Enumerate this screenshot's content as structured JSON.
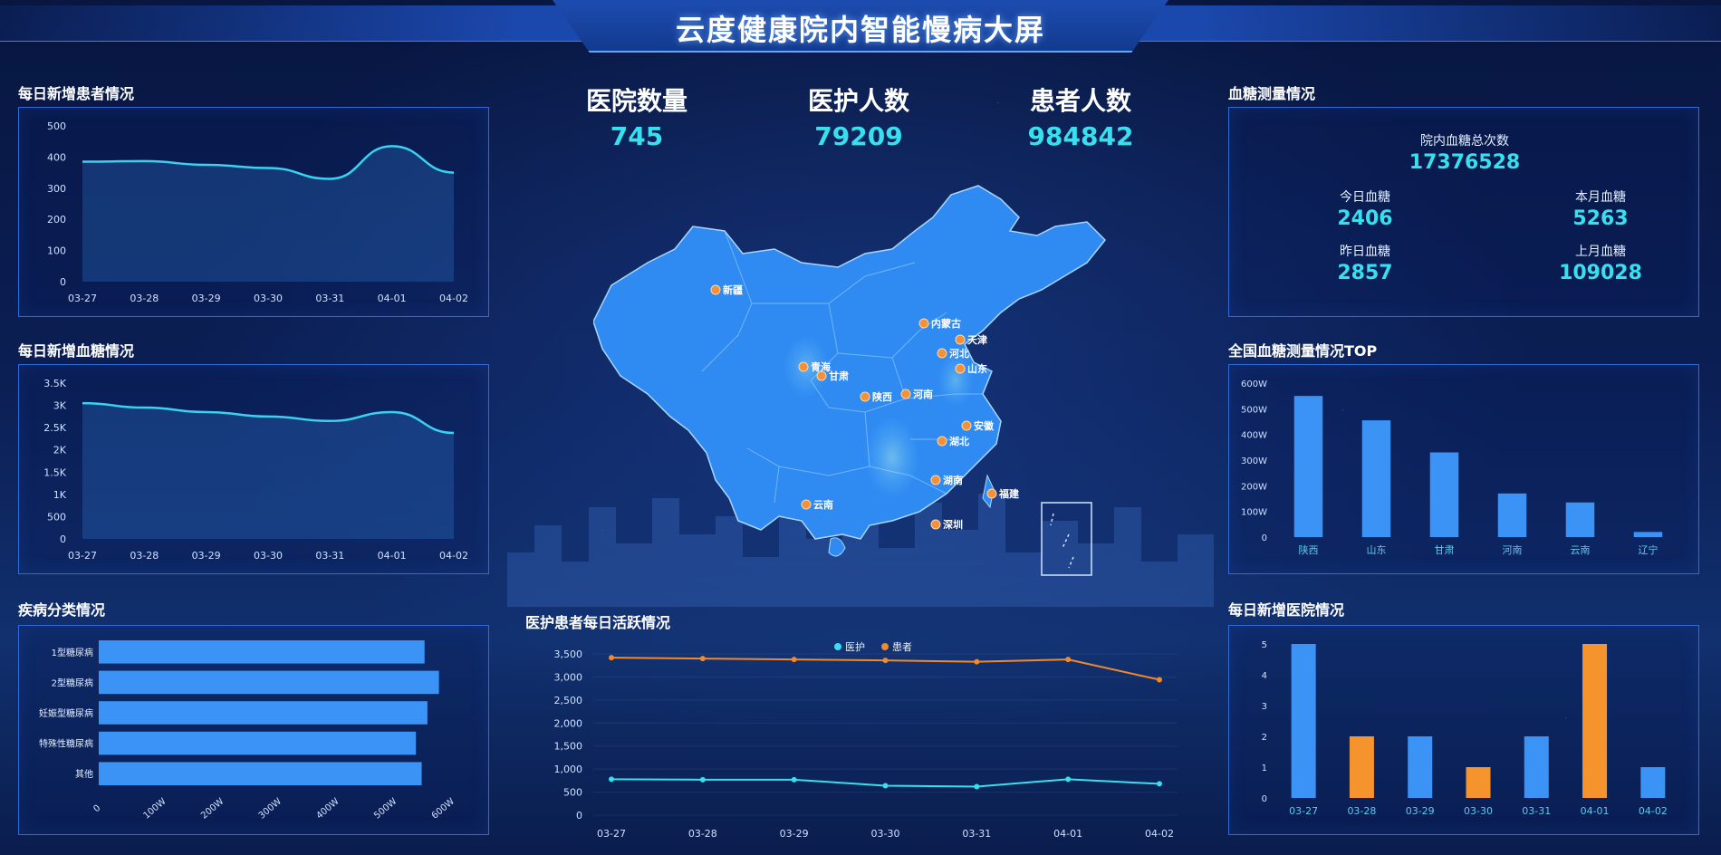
{
  "header": {
    "title": "云度健康院内智能慢病大屏"
  },
  "kpis": [
    {
      "label": "医院数量",
      "value": "745"
    },
    {
      "label": "医护人数",
      "value": "79209"
    },
    {
      "label": "患者人数",
      "value": "984842"
    }
  ],
  "panels": {
    "daily_new_patients": {
      "title": "每日新增患者情况",
      "chart_data": {
        "type": "area",
        "x": [
          "03-27",
          "03-28",
          "03-29",
          "03-30",
          "03-31",
          "04-01",
          "04-02"
        ],
        "values": [
          385,
          387,
          375,
          365,
          330,
          435,
          350
        ],
        "yticks": [
          "0",
          "100",
          "200",
          "300",
          "400",
          "500"
        ],
        "ylim": [
          0,
          500
        ],
        "color": "#39d3f0"
      }
    },
    "daily_new_glucose": {
      "title": "每日新增血糖情况",
      "chart_data": {
        "type": "area",
        "x": [
          "03-27",
          "03-28",
          "03-29",
          "03-30",
          "03-31",
          "04-01",
          "04-02"
        ],
        "values": [
          3050,
          2950,
          2850,
          2750,
          2650,
          2850,
          2380
        ],
        "yticks": [
          "0",
          "500",
          "1K",
          "1.5K",
          "2K",
          "2.5K",
          "3K",
          "3.5K"
        ],
        "ylim": [
          0,
          3500
        ],
        "color": "#39d3f0"
      }
    },
    "disease_category": {
      "title": "疾病分类情况",
      "chart_data": {
        "type": "bar",
        "orientation": "horizontal",
        "categories": [
          "1型糖尿病",
          "2型糖尿病",
          "妊娠型糖尿病",
          "特殊性糖尿病",
          "其他"
        ],
        "values": [
          565,
          590,
          570,
          550,
          560
        ],
        "xticks": [
          "0",
          "100W",
          "200W",
          "300W",
          "400W",
          "500W",
          "600W"
        ],
        "xlim": [
          0,
          600
        ],
        "color": "#3a93f5"
      }
    },
    "daily_active": {
      "title": "医护患者每日活跃情况",
      "chart_data": {
        "type": "line",
        "x": [
          "03-27",
          "03-28",
          "03-29",
          "03-30",
          "03-31",
          "04-01",
          "04-02"
        ],
        "series": [
          {
            "name": "医护",
            "values": [
              780,
              770,
              770,
              640,
              620,
              780,
              680
            ],
            "color": "#36e0ee"
          },
          {
            "name": "患者",
            "values": [
              3420,
              3400,
              3380,
              3360,
              3330,
              3380,
              2940
            ],
            "color": "#f08a2c"
          }
        ],
        "yticks": [
          "0",
          "500",
          "1,000",
          "1,500",
          "2,000",
          "2,500",
          "3,000",
          "3,500"
        ],
        "ylim": [
          0,
          3500
        ],
        "legend": "top-center"
      }
    },
    "glucose_measure": {
      "title": "血糖测量情况",
      "total_label": "院内血糖总次数",
      "total_value": "17376528",
      "stats": [
        {
          "label": "今日血糖",
          "value": "2406"
        },
        {
          "label": "本月血糖",
          "value": "5263"
        },
        {
          "label": "昨日血糖",
          "value": "2857"
        },
        {
          "label": "上月血糖",
          "value": "109028"
        }
      ]
    },
    "glucose_top": {
      "title": "全国血糖测量情况TOP",
      "chart_data": {
        "type": "bar",
        "categories": [
          "陕西",
          "山东",
          "甘肃",
          "河南",
          "云南",
          "辽宁"
        ],
        "values": [
          550,
          455,
          330,
          170,
          135,
          20
        ],
        "yticks": [
          "0",
          "100W",
          "200W",
          "300W",
          "400W",
          "500W",
          "600W"
        ],
        "ylim": [
          0,
          600
        ],
        "color": "#3a93f5"
      }
    },
    "daily_new_hospitals": {
      "title": "每日新增医院情况",
      "chart_data": {
        "type": "bar",
        "categories": [
          "03-27",
          "03-28",
          "03-29",
          "03-30",
          "03-31",
          "04-01",
          "04-02"
        ],
        "values": [
          5,
          2,
          2,
          1,
          2,
          5,
          1
        ],
        "colors": [
          "#3a93f5",
          "#f5932c",
          "#3a93f5",
          "#f5932c",
          "#3a93f5",
          "#f5932c",
          "#3a93f5"
        ],
        "yticks": [
          "0",
          "1",
          "2",
          "3",
          "4",
          "5"
        ],
        "ylim": [
          0,
          5
        ]
      }
    }
  },
  "map": {
    "provinces": [
      "新疆",
      "内蒙古",
      "天津",
      "河北",
      "山东",
      "青海",
      "甘肃",
      "陕西",
      "河南",
      "安徽",
      "湖北",
      "湖南",
      "福建",
      "云南",
      "深圳"
    ]
  }
}
